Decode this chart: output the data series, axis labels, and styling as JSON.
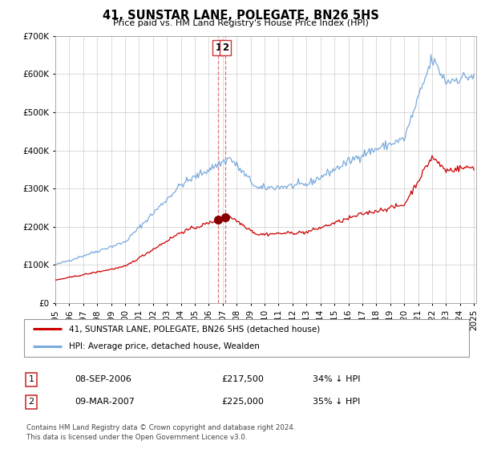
{
  "title": "41, SUNSTAR LANE, POLEGATE, BN26 5HS",
  "subtitle": "Price paid vs. HM Land Registry's House Price Index (HPI)",
  "hpi_label": "HPI: Average price, detached house, Wealden",
  "property_label": "41, SUNSTAR LANE, POLEGATE, BN26 5HS (detached house)",
  "hpi_color": "#7aaadd",
  "property_color": "#cc0000",
  "marker_color": "#880000",
  "vline_color": "#cc3333",
  "sale1_price": 217500,
  "sale2_price": 225000,
  "table_row1": [
    "1",
    "08-SEP-2006",
    "£217,500",
    "34% ↓ HPI"
  ],
  "table_row2": [
    "2",
    "09-MAR-2007",
    "£225,000",
    "35% ↓ HPI"
  ],
  "footnote1": "Contains HM Land Registry data © Crown copyright and database right 2024.",
  "footnote2": "This data is licensed under the Open Government Licence v3.0.",
  "ylim_max": 700000,
  "background_color": "#ffffff",
  "grid_color": "#cccccc"
}
